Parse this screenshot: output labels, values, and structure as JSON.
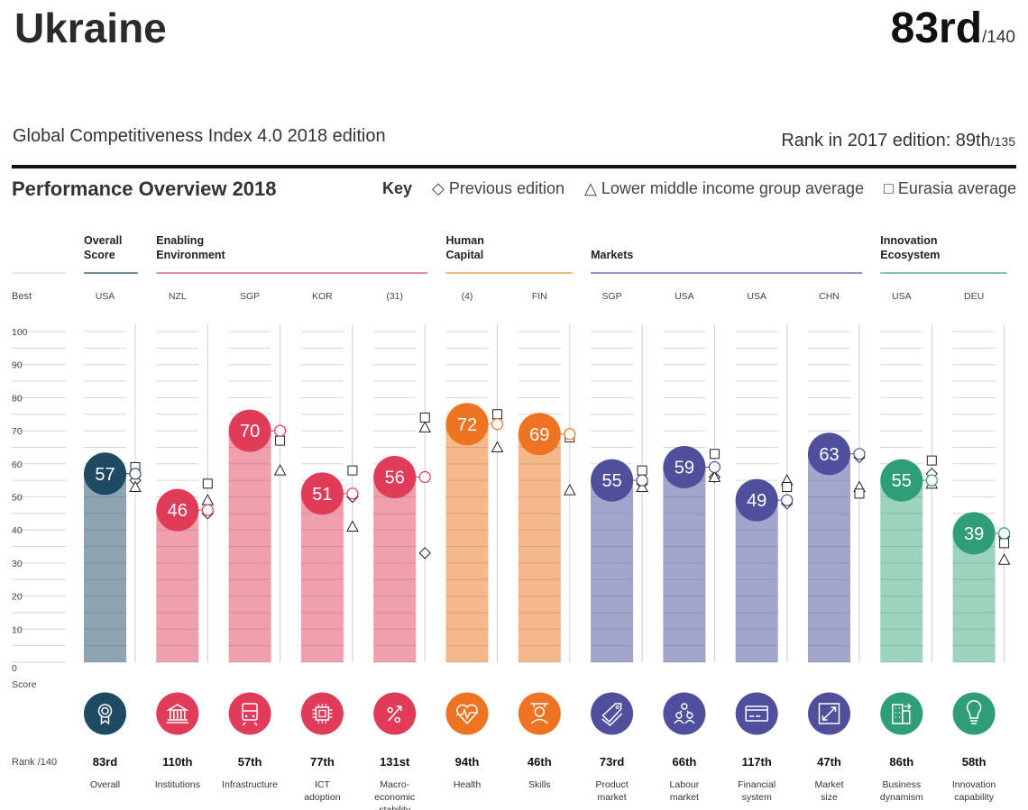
{
  "header": {
    "country": "Ukraine",
    "rank": "83rd",
    "rank_of": "/140",
    "subtitle": "Global Competitiveness Index 4.0 2018 edition",
    "prev_rank_label": "Rank in 2017 edition: 89th",
    "prev_rank_of": "/135"
  },
  "section_title": "Performance Overview 2018",
  "key": {
    "label": "Key",
    "items": [
      {
        "symbol": "◇",
        "text": "Previous edition"
      },
      {
        "symbol": "△",
        "text": "Lower middle income group average"
      },
      {
        "symbol": "□",
        "text": "Eurasia average"
      }
    ]
  },
  "chart_data": {
    "type": "bar",
    "y_axis_label_top": "Best",
    "y_axis_label_bottom": "Score",
    "rank_row_label": "Rank /140",
    "ylim": [
      0,
      100
    ],
    "yticks": [
      "100",
      "90",
      "80",
      "70",
      "60",
      "50",
      "40",
      "30",
      "20",
      "10",
      "0"
    ],
    "groups": [
      {
        "name": "Overall Score",
        "lines": [
          "Overall",
          "Score"
        ],
        "color": "#1f4a63",
        "span": [
          0,
          0
        ]
      },
      {
        "name": "Enabling Environment",
        "lines": [
          "Enabling",
          "Environment"
        ],
        "color": "#c94a6a",
        "span": [
          1,
          4
        ]
      },
      {
        "name": "Human Capital",
        "lines": [
          "Human",
          "Capital"
        ],
        "color": "#e0902e",
        "span": [
          5,
          6
        ]
      },
      {
        "name": "Markets",
        "lines": [
          "",
          "Markets"
        ],
        "color": "#4f4f9e",
        "span": [
          7,
          10
        ]
      },
      {
        "name": "Innovation Ecosystem",
        "lines": [
          "Innovation",
          "Ecosystem"
        ],
        "color": "#3a9f80",
        "span": [
          11,
          12
        ]
      }
    ],
    "pillars": [
      {
        "name": [
          "Overall"
        ],
        "best": "USA",
        "score": 57,
        "rank": "83rd",
        "previous": 55,
        "group_avg": 53,
        "region_avg": 59,
        "icon": "award-icon",
        "group": 0
      },
      {
        "name": [
          "Institutions"
        ],
        "best": "NZL",
        "score": 46,
        "rank": "110th",
        "previous": 45,
        "group_avg": 49,
        "region_avg": 54,
        "icon": "institution-icon",
        "group": 1
      },
      {
        "name": [
          "Infrastructure"
        ],
        "best": "SGP",
        "score": 70,
        "rank": "57th",
        "previous": 70,
        "group_avg": 58,
        "region_avg": 67,
        "icon": "train-icon",
        "group": 1
      },
      {
        "name": [
          "ICT",
          "adoption"
        ],
        "best": "KOR",
        "score": 51,
        "rank": "77th",
        "previous": 50,
        "group_avg": 41,
        "region_avg": 58,
        "icon": "chip-icon",
        "group": 1
      },
      {
        "name": [
          "Macro-",
          "economic",
          "stability"
        ],
        "best": "(31)",
        "score": 56,
        "rank": "131st",
        "previous": 33,
        "group_avg": 71,
        "region_avg": 74,
        "icon": "percent-icon",
        "group": 1
      },
      {
        "name": [
          "Health"
        ],
        "best": "(4)",
        "score": 72,
        "rank": "94th",
        "previous": 72,
        "group_avg": 65,
        "region_avg": 75,
        "icon": "heart-icon",
        "group": 2
      },
      {
        "name": [
          "Skills"
        ],
        "best": "FIN",
        "score": 69,
        "rank": "46th",
        "previous": 69,
        "group_avg": 52,
        "region_avg": 68,
        "icon": "graduate-icon",
        "group": 2
      },
      {
        "name": [
          "Product",
          "market"
        ],
        "best": "SGP",
        "score": 55,
        "rank": "73rd",
        "previous": 54,
        "group_avg": 53,
        "region_avg": 58,
        "icon": "tag-icon",
        "group": 3
      },
      {
        "name": [
          "Labour",
          "market"
        ],
        "best": "USA",
        "score": 59,
        "rank": "66th",
        "previous": 56,
        "group_avg": 56,
        "region_avg": 63,
        "icon": "people-icon",
        "group": 3
      },
      {
        "name": [
          "Financial",
          "system"
        ],
        "best": "USA",
        "score": 49,
        "rank": "117th",
        "previous": 48,
        "group_avg": 55,
        "region_avg": 53,
        "icon": "card-icon",
        "group": 3
      },
      {
        "name": [
          "Market",
          "size"
        ],
        "best": "CHN",
        "score": 63,
        "rank": "47th",
        "previous": 62,
        "group_avg": 53,
        "region_avg": 51,
        "icon": "expand-icon",
        "group": 3
      },
      {
        "name": [
          "Business",
          "dynamism"
        ],
        "best": "USA",
        "score": 55,
        "rank": "86th",
        "previous": 57,
        "group_avg": 54,
        "region_avg": 61,
        "icon": "building-icon",
        "group": 4
      },
      {
        "name": [
          "Innovation",
          "capability"
        ],
        "best": "DEU",
        "score": 39,
        "rank": "58th",
        "previous": 38,
        "group_avg": 31,
        "region_avg": 36,
        "icon": "bulb-icon",
        "group": 4
      }
    ],
    "colors": {
      "dark": [
        "#1f4a63",
        "#e03c5a",
        "#ee7322",
        "#4f4f9e",
        "#2f9e78"
      ],
      "light": [
        "#8fa4b3",
        "#f0a0ac",
        "#f5b88a",
        "#a4a5cc",
        "#9dd3bd"
      ]
    }
  }
}
